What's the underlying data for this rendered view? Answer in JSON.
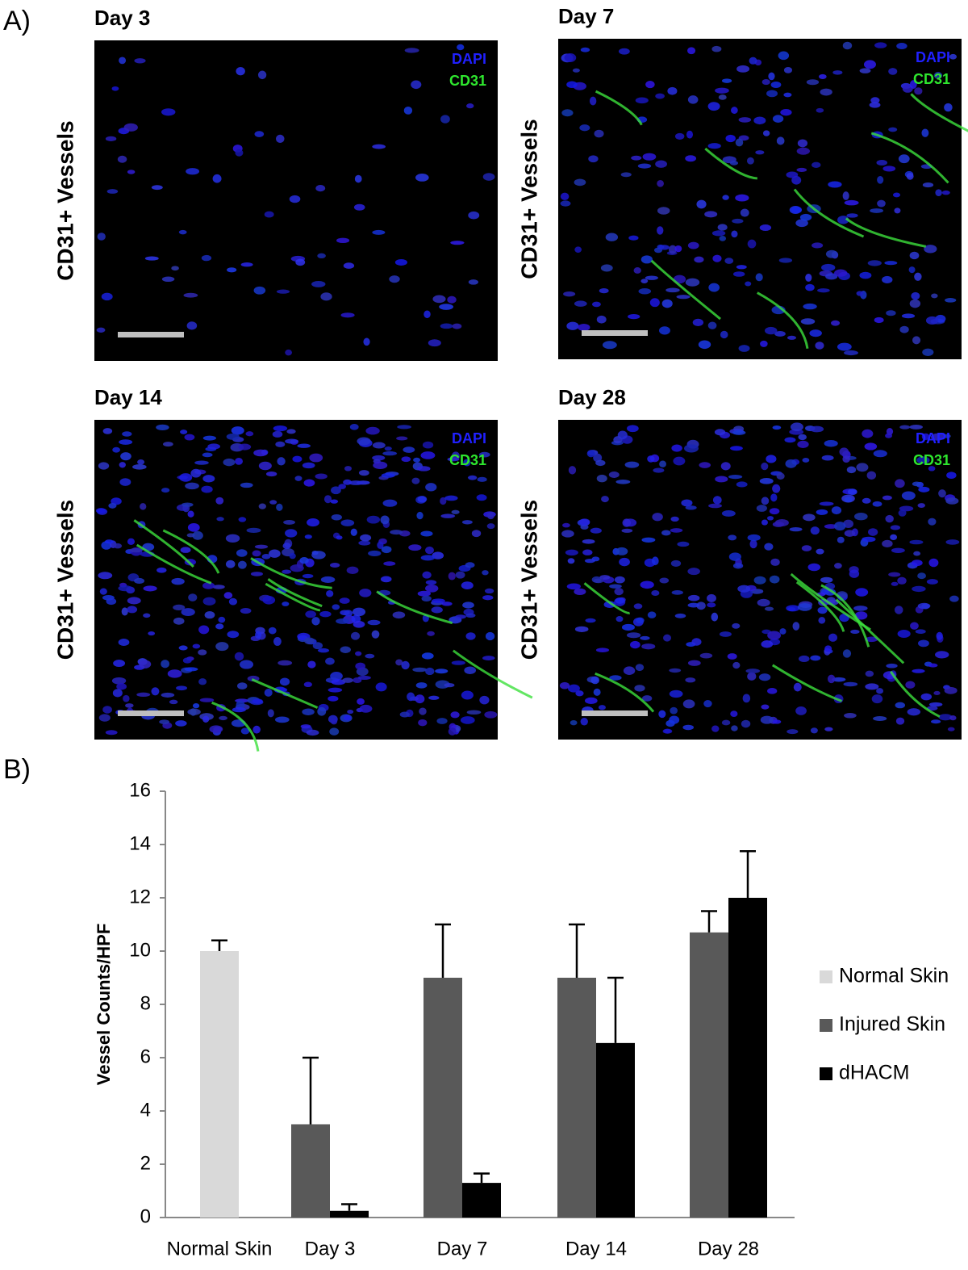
{
  "panel_a": {
    "label": "A)",
    "panels": [
      {
        "title": "Day 3",
        "ylabel": "CD31+ Vessels",
        "stains": [
          "DAPI",
          "CD31"
        ]
      },
      {
        "title": "Day 7",
        "ylabel": "CD31+ Vessels",
        "stains": [
          "DAPI",
          "CD31"
        ]
      },
      {
        "title": "Day 14",
        "ylabel": "CD31+ Vessels",
        "stains": [
          "DAPI",
          "CD31"
        ]
      },
      {
        "title": "Day 28",
        "ylabel": "CD31+ Vessels",
        "stains": [
          "DAPI",
          "CD31"
        ]
      }
    ]
  },
  "chart_data": {
    "type": "bar",
    "label": "B)",
    "ylabel": "Vessel Counts/HPF",
    "categories": [
      "Normal Skin",
      "Day 3",
      "Day 7",
      "Day 14",
      "Day 28"
    ],
    "series": [
      {
        "name": "Normal Skin",
        "color": "#d9d9d9",
        "values": [
          10,
          null,
          null,
          null,
          null
        ],
        "errors": [
          0.4,
          null,
          null,
          null,
          null
        ]
      },
      {
        "name": "Injured Skin",
        "color": "#595959",
        "values": [
          null,
          3.5,
          9,
          9,
          10.7
        ],
        "errors": [
          null,
          2.5,
          2,
          2,
          0.8
        ]
      },
      {
        "name": "dHACM",
        "color": "#000000",
        "values": [
          null,
          0.25,
          1.3,
          6.55,
          12
        ],
        "errors": [
          null,
          0.25,
          0.35,
          2.45,
          1.75
        ]
      }
    ],
    "ylim": [
      0,
      16
    ],
    "yticks": [
      0,
      2,
      4,
      6,
      8,
      10,
      12,
      14,
      16
    ],
    "grid": false,
    "legend": "right"
  }
}
